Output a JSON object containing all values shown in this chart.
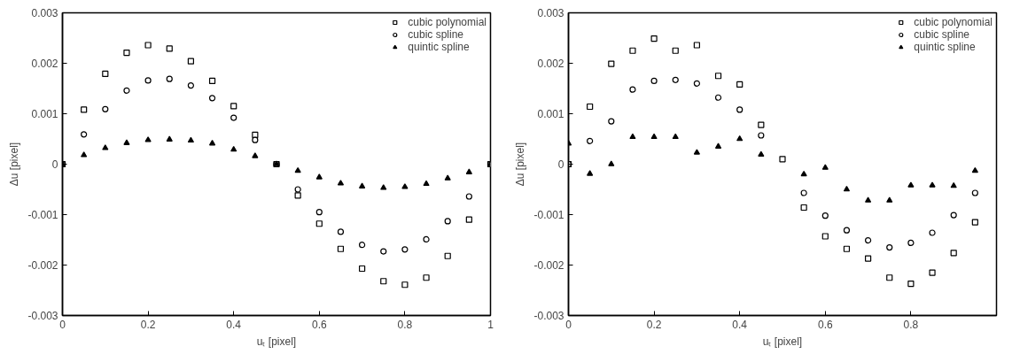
{
  "chart_data": [
    {
      "type": "scatter",
      "xlabel": "uₜ [pixel]",
      "ylabel": "Δu [pixel]",
      "xlim": [
        0,
        1
      ],
      "ylim": [
        -0.003,
        0.003
      ],
      "xticks": [
        0,
        0.2,
        0.4,
        0.6,
        0.8,
        1
      ],
      "yticks": [
        -0.003,
        -0.002,
        -0.001,
        0,
        0.001,
        0.002,
        0.003
      ],
      "grid": false,
      "legend": "top right",
      "x": [
        0,
        0.05,
        0.1,
        0.15,
        0.2,
        0.25,
        0.3,
        0.35,
        0.4,
        0.45,
        0.5,
        0.55,
        0.6,
        0.65,
        0.7,
        0.75,
        0.8,
        0.85,
        0.9,
        0.95,
        1
      ],
      "series": [
        {
          "name": "cubic polynomial",
          "color": "#000000",
          "marker": "square",
          "values": [
            0,
            0.00108,
            0.00179,
            0.00221,
            0.00236,
            0.00229,
            0.00204,
            0.00165,
            0.00115,
            0.00058,
            0,
            -0.00062,
            -0.00118,
            -0.00168,
            -0.00207,
            -0.00232,
            -0.00239,
            -0.00225,
            -0.00182,
            -0.0011,
            0
          ]
        },
        {
          "name": "cubic spline",
          "color": "#000000",
          "marker": "circle",
          "values": [
            0,
            0.00059,
            0.00109,
            0.00146,
            0.00166,
            0.00169,
            0.00156,
            0.00131,
            0.00092,
            0.00048,
            0,
            -0.0005,
            -0.00095,
            -0.00134,
            -0.0016,
            -0.00173,
            -0.00169,
            -0.00149,
            -0.00113,
            -0.00064,
            0
          ]
        },
        {
          "name": "quintic spline",
          "color": "#000000",
          "marker": "triangle",
          "values": [
            0,
            0.00018,
            0.00032,
            0.00042,
            0.00048,
            0.00049,
            0.00047,
            0.00041,
            0.00029,
            0.00016,
            0,
            -0.00013,
            -0.00026,
            -0.00038,
            -0.00044,
            -0.00047,
            -0.00045,
            -0.00039,
            -0.00028,
            -0.00016,
            0
          ]
        }
      ]
    },
    {
      "type": "scatter",
      "xlabel": "uₜ [pixel]",
      "ylabel": "Δu [pixel]",
      "xlim": [
        0,
        1
      ],
      "ylim": [
        -0.003,
        0.003
      ],
      "xticks": [
        0,
        0.2,
        0.4,
        0.6,
        0.8,
        {
          "value": 1,
          "label": null
        }
      ],
      "yticks": [
        -0.003,
        -0.002,
        -0.001,
        0,
        0.001,
        0.002,
        0.003
      ],
      "grid": false,
      "legend": "top right",
      "x": [
        0,
        0.05,
        0.1,
        0.15,
        0.2,
        0.25,
        0.3,
        0.35,
        0.4,
        0.45,
        0.5,
        0.55,
        0.6,
        0.65,
        0.7,
        0.75,
        0.8,
        0.85,
        0.9,
        0.95
      ],
      "series": [
        {
          "name": "cubic polynomial",
          "color": "#000000",
          "marker": "square",
          "values": [
            0,
            0.00114,
            0.00199,
            0.00225,
            0.00249,
            0.00225,
            0.00236,
            0.00175,
            0.00158,
            0.00078,
            0.0001,
            -0.00086,
            -0.00143,
            -0.00168,
            -0.00187,
            -0.00225,
            -0.00237,
            -0.00215,
            -0.00176,
            -0.00115
          ]
        },
        {
          "name": "cubic spline",
          "color": "#000000",
          "marker": "circle",
          "values": [
            0,
            0.00046,
            0.00085,
            0.00148,
            0.00165,
            0.00167,
            0.0016,
            0.00132,
            0.00108,
            0.00057,
            null,
            -0.00057,
            -0.00102,
            -0.00131,
            -0.00151,
            -0.00165,
            -0.00156,
            -0.00136,
            -0.00101,
            -0.00057
          ]
        },
        {
          "name": "quintic spline",
          "color": "#000000",
          "marker": "triangle",
          "values": [
            0.00041,
            -0.00019,
            0,
            0.00054,
            0.00054,
            0.00054,
            0.00023,
            0.00035,
            0.0005,
            0.00019,
            null,
            -0.0002,
            -7e-05,
            -0.0005,
            -0.00072,
            -0.00072,
            -0.00042,
            -0.00042,
            -0.00043,
            -0.00013
          ]
        }
      ]
    }
  ]
}
